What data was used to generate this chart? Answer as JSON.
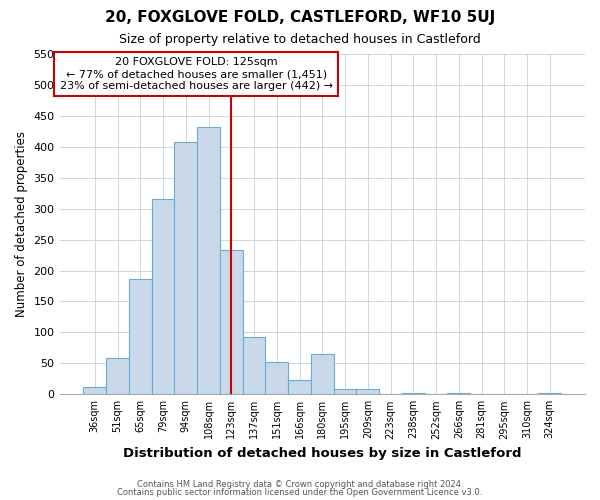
{
  "title": "20, FOXGLOVE FOLD, CASTLEFORD, WF10 5UJ",
  "subtitle": "Size of property relative to detached houses in Castleford",
  "xlabel": "Distribution of detached houses by size in Castleford",
  "ylabel": "Number of detached properties",
  "bar_labels": [
    "36sqm",
    "51sqm",
    "65sqm",
    "79sqm",
    "94sqm",
    "108sqm",
    "123sqm",
    "137sqm",
    "151sqm",
    "166sqm",
    "180sqm",
    "195sqm",
    "209sqm",
    "223sqm",
    "238sqm",
    "252sqm",
    "266sqm",
    "281sqm",
    "295sqm",
    "310sqm",
    "324sqm"
  ],
  "bar_values": [
    12,
    59,
    186,
    316,
    407,
    432,
    233,
    92,
    52,
    23,
    65,
    8,
    9,
    0,
    2,
    0,
    2,
    0,
    0,
    0,
    2
  ],
  "bar_color": "#c9d9ea",
  "bar_edge_color": "#6aaad4",
  "vline_x": 6,
  "vline_color": "#cc0000",
  "ylim": [
    0,
    550
  ],
  "yticks": [
    0,
    50,
    100,
    150,
    200,
    250,
    300,
    350,
    400,
    450,
    500,
    550
  ],
  "annotation_title": "20 FOXGLOVE FOLD: 125sqm",
  "annotation_line1": "← 77% of detached houses are smaller (1,451)",
  "annotation_line2": "23% of semi-detached houses are larger (442) →",
  "annotation_box_color": "#cc0000",
  "grid_color": "#c8d8e8",
  "footer_line1": "Contains HM Land Registry data © Crown copyright and database right 2024.",
  "footer_line2": "Contains public sector information licensed under the Open Government Licence v3.0.",
  "bg_color": "#ffffff",
  "plot_bg_color": "#ffffff"
}
